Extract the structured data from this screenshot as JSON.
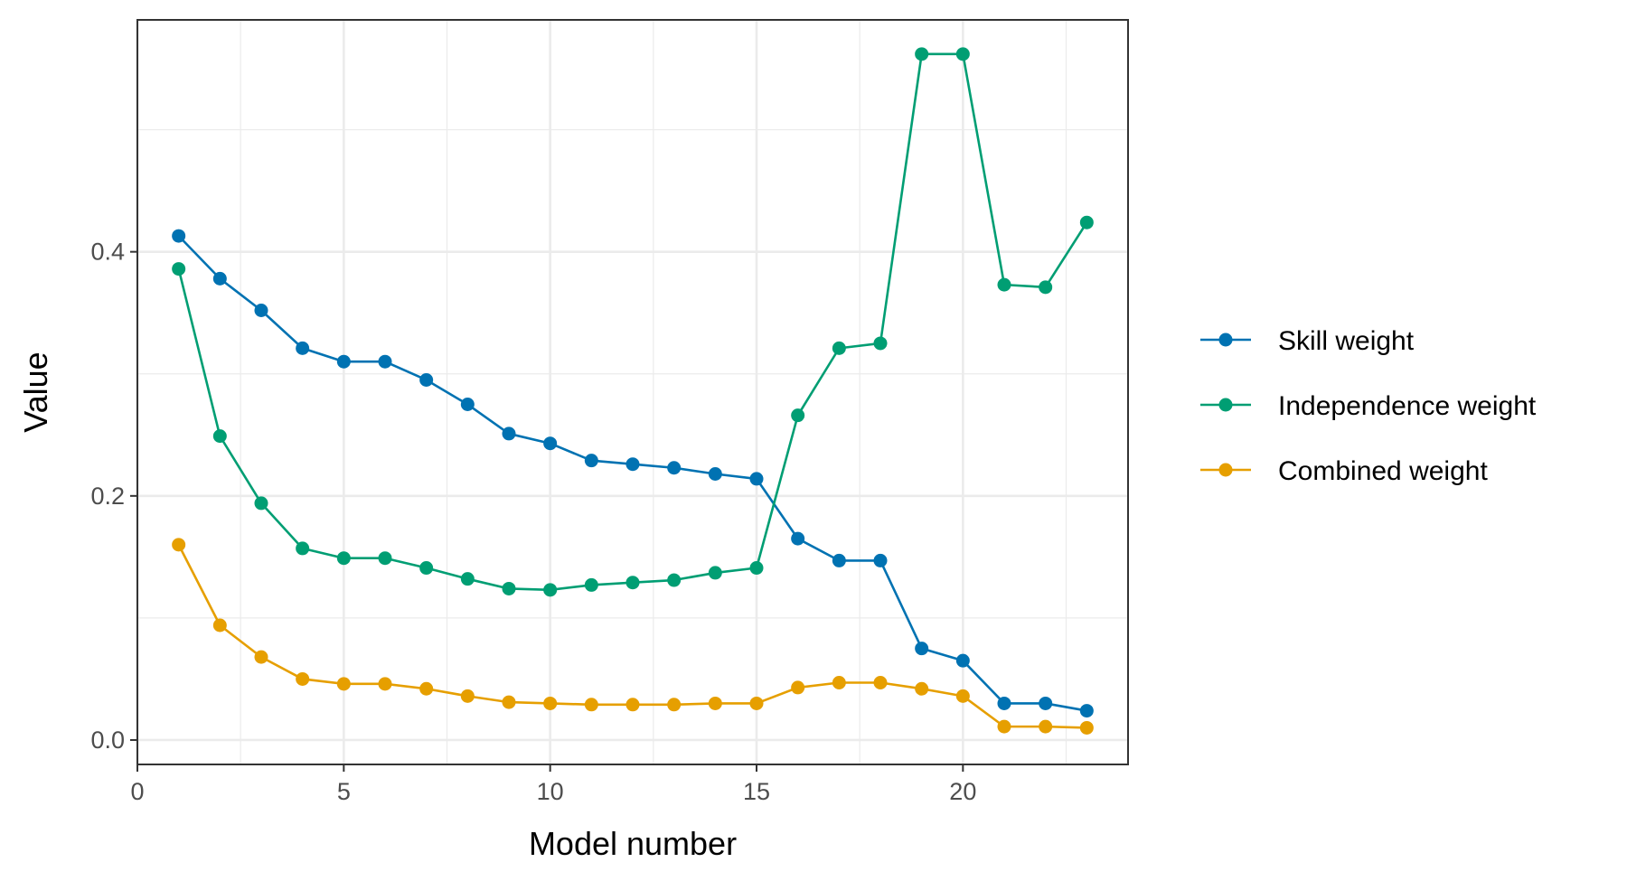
{
  "chart_data": {
    "type": "line",
    "xlabel": "Model number",
    "ylabel": "Value",
    "xlim": [
      0,
      24
    ],
    "ylim": [
      -0.02,
      0.59
    ],
    "xticks": [
      0,
      5,
      10,
      15,
      20
    ],
    "xtick_labels": [
      "0",
      "5",
      "10",
      "15",
      "20"
    ],
    "yticks": [
      0.0,
      0.2,
      0.4
    ],
    "ytick_labels": [
      "0.0",
      "0.2",
      "0.4"
    ],
    "x_minor_ticks": [
      2.5,
      7.5,
      12.5,
      17.5,
      22.5
    ],
    "y_minor_ticks": [
      0.1,
      0.3,
      0.5
    ],
    "grid": true,
    "legend_position": "right",
    "x": [
      1,
      2,
      3,
      4,
      5,
      6,
      7,
      8,
      9,
      10,
      11,
      12,
      13,
      14,
      15,
      16,
      17,
      18,
      19,
      20,
      21,
      22,
      23
    ],
    "series": [
      {
        "name": "Skill weight",
        "color": "#0072B2",
        "values": [
          0.413,
          0.378,
          0.352,
          0.321,
          0.31,
          0.31,
          0.295,
          0.275,
          0.251,
          0.243,
          0.229,
          0.226,
          0.223,
          0.218,
          0.214,
          0.165,
          0.147,
          0.147,
          0.075,
          0.065,
          0.03,
          0.03,
          0.024
        ]
      },
      {
        "name": "Independence weight",
        "color": "#009E73",
        "values": [
          0.386,
          0.249,
          0.194,
          0.157,
          0.149,
          0.149,
          0.141,
          0.132,
          0.124,
          0.123,
          0.127,
          0.129,
          0.131,
          0.137,
          0.141,
          0.266,
          0.321,
          0.325,
          0.562,
          0.562,
          0.373,
          0.371,
          0.424
        ]
      },
      {
        "name": "Combined weight",
        "color": "#E69F00",
        "values": [
          0.16,
          0.094,
          0.068,
          0.05,
          0.046,
          0.046,
          0.042,
          0.036,
          0.031,
          0.03,
          0.029,
          0.029,
          0.029,
          0.03,
          0.03,
          0.043,
          0.047,
          0.047,
          0.042,
          0.036,
          0.011,
          0.011,
          0.01
        ]
      }
    ]
  }
}
